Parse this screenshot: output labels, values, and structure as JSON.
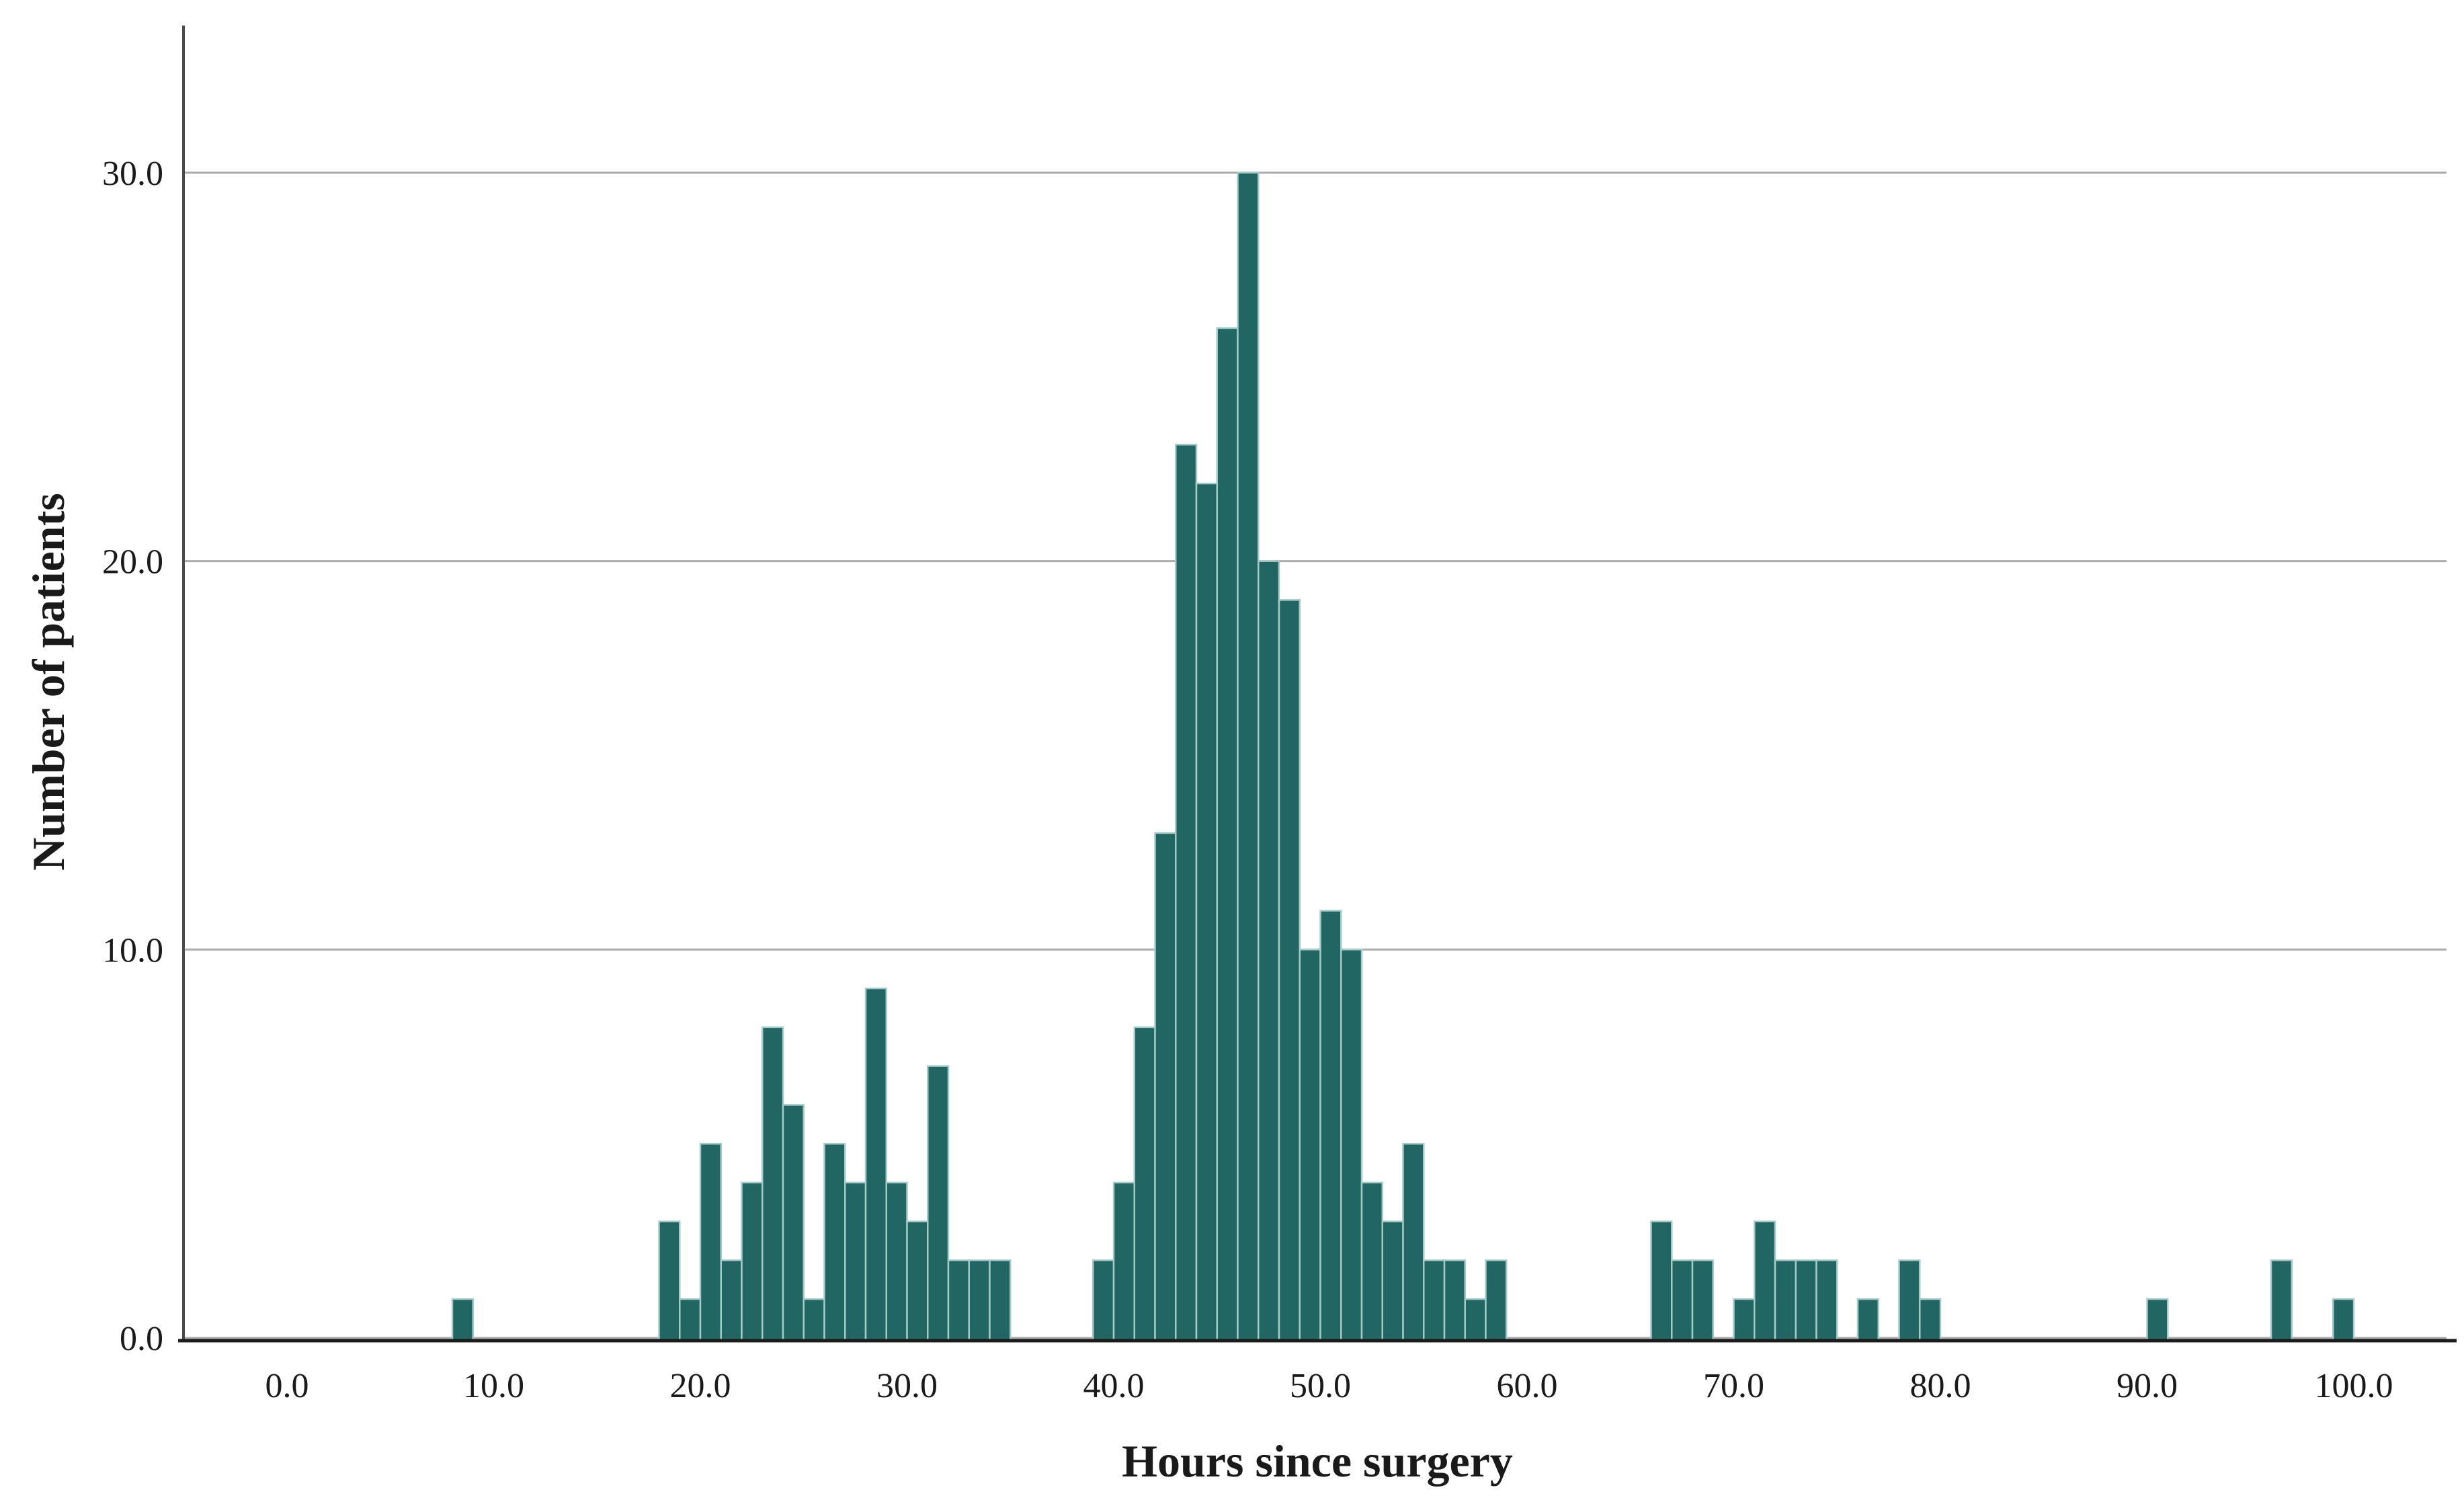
{
  "page": {
    "background": "#ffffff",
    "description": "Histogram of number of patients by hours since surgery"
  },
  "chart_data": {
    "type": "bar",
    "subtype": "histogram",
    "title": "",
    "xlabel": "Hours since surgery",
    "ylabel": "Number of patients",
    "bin_width_hours": 1,
    "xlim": [
      -5,
      104.5
    ],
    "ylim": [
      0,
      33.8
    ],
    "grid": "horizontal-only",
    "legend": "none",
    "xticks": [
      {
        "value": 0,
        "label": "0.0"
      },
      {
        "value": 10,
        "label": "10.0"
      },
      {
        "value": 20,
        "label": "20.0"
      },
      {
        "value": 30,
        "label": "30.0"
      },
      {
        "value": 40,
        "label": "40.0"
      },
      {
        "value": 50,
        "label": "50.0"
      },
      {
        "value": 60,
        "label": "60.0"
      },
      {
        "value": 70,
        "label": "70.0"
      },
      {
        "value": 80,
        "label": "80.0"
      },
      {
        "value": 90,
        "label": "90.0"
      },
      {
        "value": 100,
        "label": "100.0"
      }
    ],
    "yticks": [
      {
        "value": 0,
        "label": "0.0"
      },
      {
        "value": 10,
        "label": "10.0"
      },
      {
        "value": 20,
        "label": "20.0"
      },
      {
        "value": 30,
        "label": "30.0"
      }
    ],
    "bins": [
      [
        8,
        1
      ],
      [
        18,
        3
      ],
      [
        19,
        1
      ],
      [
        20,
        5
      ],
      [
        21,
        2
      ],
      [
        22,
        4
      ],
      [
        23,
        8
      ],
      [
        24,
        6
      ],
      [
        25,
        1
      ],
      [
        26,
        5
      ],
      [
        27,
        4
      ],
      [
        28,
        9
      ],
      [
        29,
        4
      ],
      [
        30,
        3
      ],
      [
        31,
        7
      ],
      [
        32,
        2
      ],
      [
        33,
        2
      ],
      [
        34,
        2
      ],
      [
        39,
        2
      ],
      [
        40,
        4
      ],
      [
        41,
        8
      ],
      [
        42,
        13
      ],
      [
        43,
        23
      ],
      [
        44,
        22
      ],
      [
        45,
        26
      ],
      [
        46,
        30
      ],
      [
        47,
        20
      ],
      [
        48,
        19
      ],
      [
        49,
        10
      ],
      [
        50,
        11
      ],
      [
        51,
        10
      ],
      [
        52,
        4
      ],
      [
        53,
        3
      ],
      [
        54,
        5
      ],
      [
        55,
        2
      ],
      [
        56,
        2
      ],
      [
        57,
        1
      ],
      [
        58,
        2
      ],
      [
        66,
        3
      ],
      [
        67,
        2
      ],
      [
        68,
        2
      ],
      [
        70,
        1
      ],
      [
        71,
        3
      ],
      [
        72,
        2
      ],
      [
        73,
        2
      ],
      [
        74,
        2
      ],
      [
        76,
        1
      ],
      [
        78,
        2
      ],
      [
        79,
        1
      ],
      [
        90,
        1
      ],
      [
        96,
        2
      ],
      [
        99,
        1
      ]
    ],
    "colors": {
      "bar_fill": "#216663",
      "bar_border": "#a5cbc8",
      "gridline": "#acacac",
      "y_axis_line": "#4a4a4a",
      "x_axis_line": "#1c1c1c",
      "text": "#1a1a1a"
    }
  }
}
